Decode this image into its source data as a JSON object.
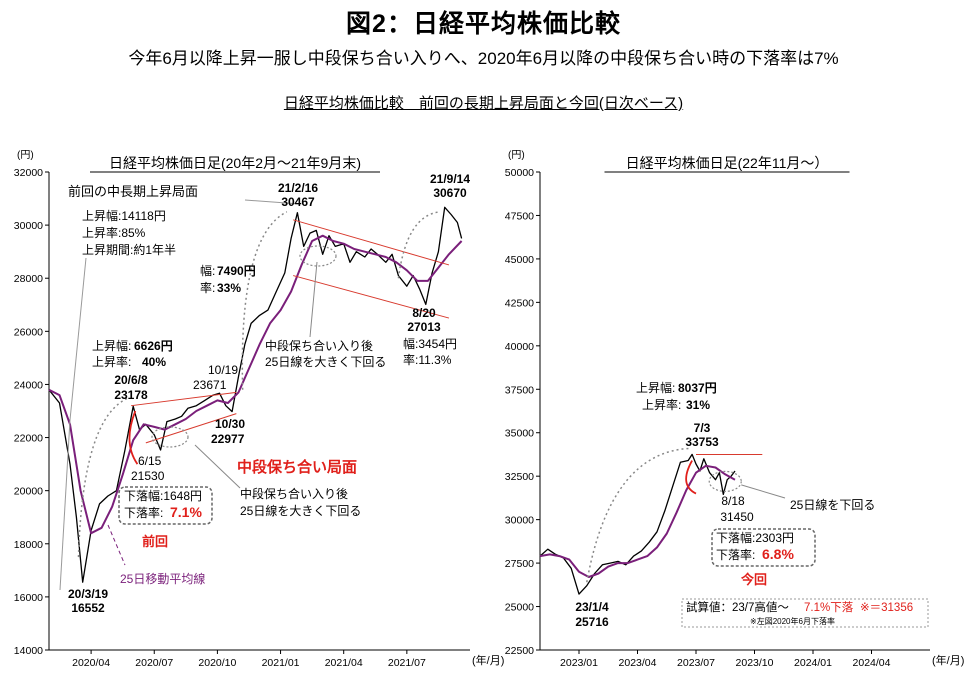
{
  "header": {
    "title": "図2：日経平均株価比較",
    "subtitle": "今年6月以降上昇一服し中段保ち合い入りへ、2020年6月以降の中段保ち合い時の下落率は7%",
    "section": "日経平均株価比較　前回の長期上昇局面と今回(日次ベース)"
  },
  "colors": {
    "price": "#000000",
    "ma": "#7a1f7a",
    "annotation_red": "#e0201b",
    "channel": "#d83a2e",
    "dotted": "#888888"
  },
  "chart_data": [
    {
      "type": "line",
      "title": "日経平均株価日足(20年2月～21年9月末)",
      "ylabel": "(円)",
      "xlabel": "(年/月)",
      "ylim": [
        14000,
        32000
      ],
      "yticks": [
        14000,
        16000,
        18000,
        20000,
        22000,
        24000,
        26000,
        28000,
        30000,
        32000
      ],
      "ytick_labels": [
        "14000",
        "16000",
        "18000",
        "20000",
        "22000",
        "24000",
        "26000",
        "28000",
        "30000",
        "32000"
      ],
      "xlim": [
        0,
        20
      ],
      "xticks": [
        2,
        5,
        8,
        11,
        14,
        17
      ],
      "xtick_labels": [
        "2020/04",
        "2020/07",
        "2020/10",
        "2021/01",
        "2021/04",
        "2021/07"
      ],
      "series": [
        {
          "key": "price",
          "x": [
            0,
            0.5,
            1.0,
            1.3,
            1.6,
            2.0,
            2.4,
            2.8,
            3.2,
            3.6,
            4.0,
            4.3,
            4.6,
            5.0,
            5.3,
            5.6,
            6.0,
            6.3,
            6.6,
            7.0,
            7.4,
            7.8,
            8.1,
            8.4,
            8.7,
            9.0,
            9.3,
            9.6,
            10.0,
            10.4,
            10.8,
            11.2,
            11.5,
            11.8,
            12.1,
            12.4,
            12.7,
            13.0,
            13.3,
            13.6,
            14.0,
            14.3,
            14.6,
            15.0,
            15.3,
            15.6,
            16.0,
            16.3,
            16.6,
            17.0,
            17.3,
            17.6,
            17.9,
            18.2,
            18.5,
            18.8,
            19.1,
            19.4,
            19.6
          ],
          "values": [
            23800,
            23300,
            21000,
            19000,
            16552,
            18500,
            19500,
            19800,
            20000,
            21500,
            23178,
            22300,
            22500,
            22100,
            21530,
            22600,
            22700,
            22800,
            23100,
            23200,
            23400,
            23600,
            23671,
            23200,
            22977,
            24300,
            25500,
            26300,
            26600,
            26800,
            27500,
            28200,
            29500,
            30467,
            29200,
            29700,
            29800,
            28900,
            29600,
            29200,
            29300,
            28600,
            29000,
            28800,
            29100,
            28900,
            28600,
            28900,
            28100,
            27700,
            28100,
            27600,
            27013,
            28200,
            29000,
            30670,
            30400,
            30100,
            29500
          ]
        },
        {
          "key": "ma",
          "x": [
            0,
            0.5,
            1.0,
            1.5,
            2.0,
            2.5,
            3.0,
            3.5,
            4.0,
            4.5,
            5.0,
            5.5,
            6.0,
            6.5,
            7.0,
            7.5,
            8.0,
            8.5,
            9.0,
            9.5,
            10.0,
            10.5,
            11.0,
            11.5,
            12.0,
            12.5,
            13.0,
            13.5,
            14.0,
            14.5,
            15.0,
            15.5,
            16.0,
            16.5,
            17.0,
            17.5,
            18.0,
            18.5,
            19.0,
            19.6
          ],
          "values": [
            23800,
            23600,
            22500,
            20000,
            18400,
            18600,
            19400,
            20600,
            21900,
            22500,
            22400,
            22300,
            22500,
            22700,
            23000,
            23200,
            23400,
            23300,
            23700,
            24600,
            25500,
            26300,
            26800,
            27500,
            28500,
            29400,
            29600,
            29400,
            29300,
            29100,
            29000,
            28900,
            28800,
            28600,
            28300,
            27900,
            27900,
            28400,
            28900,
            29400
          ]
        }
      ],
      "labels": [
        "前回の中長期上昇局面",
        "上昇幅:14118円",
        "上昇率:85%",
        "上昇期間:約1年半",
        "20/3/19",
        "16552",
        "上昇幅:",
        "6626円",
        "上昇率:",
        "40%",
        "20/6/8",
        "23178",
        "6/15",
        "21530",
        "10/19",
        "23671",
        "10/30",
        "22977",
        "幅:",
        "7490円",
        "率:",
        "33%",
        "21/2/16",
        "30467",
        "21/9/14",
        "30670",
        "8/20",
        "27013",
        "幅:3454円",
        "率:11.3%",
        "中段保ち合い入り後",
        "25日線を大きく下回る",
        "中段保ち合い局面",
        "中段保ち合い入り後",
        "25日線を大きく下回る",
        "下落幅:1648円",
        "下落率:",
        "7.1%",
        "前回",
        "25日移動平均線"
      ]
    },
    {
      "type": "line",
      "title": "日経平均株価日足(22年11月～）",
      "ylabel": "(円)",
      "xlabel": "(年/月)",
      "ylim": [
        22500,
        50000
      ],
      "yticks": [
        22500,
        25000,
        27500,
        30000,
        32500,
        35000,
        37500,
        40000,
        42500,
        45000,
        47500,
        50000
      ],
      "ytick_labels": [
        "22500",
        "25000",
        "27500",
        "30000",
        "32500",
        "35000",
        "37500",
        "40000",
        "42500",
        "45000",
        "47500",
        "50000"
      ],
      "xlim": [
        0,
        20
      ],
      "xticks": [
        2,
        5,
        8,
        11,
        14,
        17
      ],
      "xtick_labels": [
        "2023/01",
        "2023/04",
        "2023/07",
        "2023/10",
        "2024/01",
        "2024/04"
      ],
      "series": [
        {
          "key": "price",
          "x": [
            0,
            0.4,
            0.8,
            1.2,
            1.6,
            2.0,
            2.4,
            2.8,
            3.2,
            3.6,
            4.0,
            4.4,
            4.8,
            5.2,
            5.6,
            6.0,
            6.4,
            6.8,
            7.2,
            7.6,
            7.8,
            8.0,
            8.2,
            8.4,
            8.7,
            9.0,
            9.2,
            9.4,
            9.6,
            9.8,
            10.0
          ],
          "values": [
            27900,
            28300,
            28000,
            27800,
            27200,
            25716,
            26200,
            26900,
            27400,
            27500,
            27600,
            27400,
            27900,
            28200,
            28700,
            29300,
            30500,
            31900,
            33300,
            33400,
            33753,
            33200,
            32800,
            33500,
            32700,
            32300,
            32700,
            31450,
            32300,
            32500,
            32800
          ]
        },
        {
          "key": "ma",
          "x": [
            0,
            0.5,
            1.0,
            1.5,
            2.0,
            2.5,
            3.0,
            3.5,
            4.0,
            4.5,
            5.0,
            5.5,
            6.0,
            6.5,
            7.0,
            7.5,
            8.0,
            8.5,
            9.0,
            9.5,
            10.0
          ],
          "values": [
            27900,
            28000,
            27900,
            27700,
            27000,
            26700,
            26900,
            27300,
            27500,
            27500,
            27700,
            27900,
            28400,
            29200,
            30400,
            31700,
            32700,
            33100,
            33000,
            32600,
            32300
          ]
        }
      ],
      "labels": [
        "上昇幅:",
        "8037円",
        "上昇率:",
        "31%",
        "7/3",
        "33753",
        "8/18",
        "31450",
        "25日線を下回る",
        "下落幅:2303円",
        "下落率:",
        "6.8%",
        "今回",
        "23/1/4",
        "25716",
        "試算値：23/7高値～",
        "7.1%下落",
        "※＝31356",
        "※左図2020年6月下落率"
      ]
    }
  ]
}
